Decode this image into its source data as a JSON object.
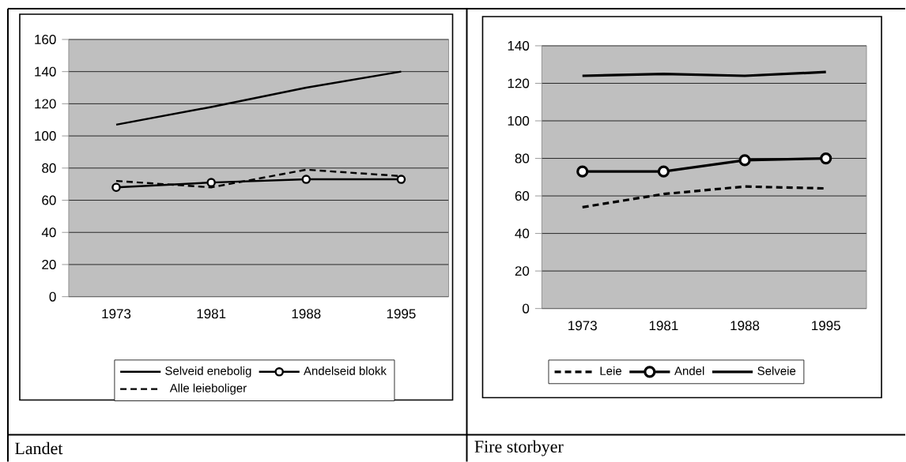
{
  "chart_data": [
    {
      "type": "line",
      "title": "Landet",
      "categories": [
        "1973",
        "1981",
        "1988",
        "1995"
      ],
      "ylim": [
        0,
        160
      ],
      "yticks": [
        0,
        20,
        40,
        60,
        80,
        100,
        120,
        140,
        160
      ],
      "grid": "y",
      "legend": "bottom",
      "series": [
        {
          "name": "Selveid enebolig",
          "color": "#000000",
          "line_style": "solid",
          "marker": "none",
          "values": [
            107,
            118,
            130,
            140
          ]
        },
        {
          "name": "Andelseid blokk",
          "color": "#000000",
          "line_style": "solid",
          "marker": "circle",
          "values": [
            68,
            71,
            73,
            73
          ]
        },
        {
          "name": "Alle leieboliger",
          "color": "#000000",
          "line_style": "dashed",
          "marker": "none",
          "values": [
            72,
            68,
            79,
            75
          ]
        }
      ]
    },
    {
      "type": "line",
      "title": "Fire storbyer",
      "categories": [
        "1973",
        "1981",
        "1988",
        "1995"
      ],
      "ylim": [
        0,
        140
      ],
      "yticks": [
        0,
        20,
        40,
        60,
        80,
        100,
        120,
        140
      ],
      "grid": "y",
      "legend": "bottom",
      "series": [
        {
          "name": "Leie",
          "color": "#000000",
          "line_style": "dashed",
          "marker": "none",
          "values": [
            54,
            61,
            65,
            64
          ]
        },
        {
          "name": "Andel",
          "color": "#000000",
          "line_style": "solid",
          "marker": "circle",
          "values": [
            73,
            73,
            79,
            80
          ]
        },
        {
          "name": "Selveie",
          "color": "#000000",
          "line_style": "solid",
          "marker": "none",
          "values": [
            124,
            125,
            124,
            126
          ]
        }
      ]
    }
  ]
}
